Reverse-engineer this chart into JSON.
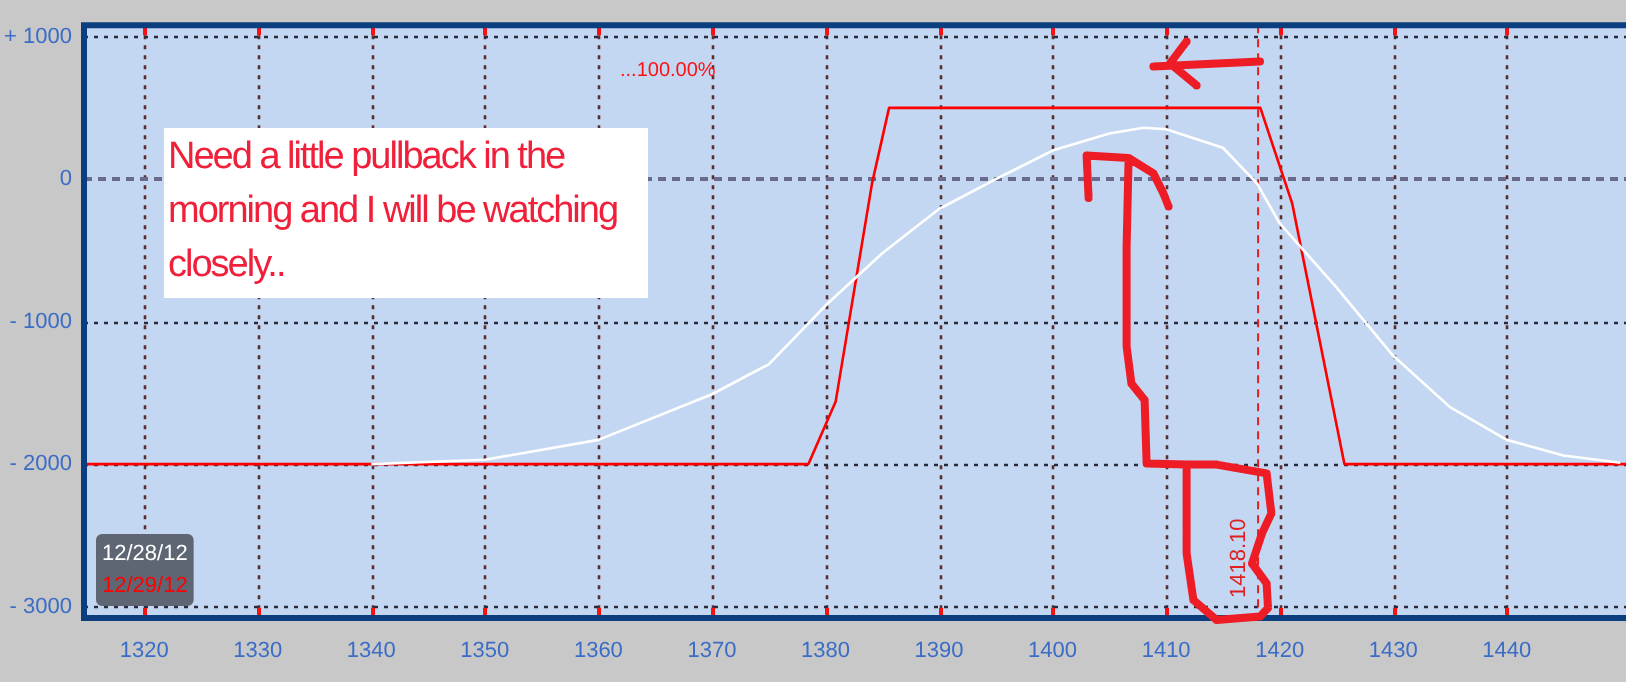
{
  "chart_data": {
    "type": "line",
    "series": [
      {
        "name": "12/28/12",
        "color": "#ffffff",
        "x": [
          1340,
          1350,
          1360,
          1370,
          1375,
          1377.8,
          1380.1,
          1385,
          1390,
          1395,
          1400,
          1405,
          1408,
          1410,
          1415,
          1418,
          1420,
          1425,
          1430,
          1435,
          1440,
          1445,
          1450
        ],
        "values": [
          -2000,
          -1970,
          -1830,
          -1510,
          -1300,
          -1070,
          -880,
          -520,
          -210,
          0,
          200,
          320,
          360,
          350,
          220,
          -30,
          -310,
          -760,
          -1240,
          -1600,
          -1830,
          -1940,
          -1990
        ]
      },
      {
        "name": "12/29/12",
        "color": "#ff0000",
        "x": [
          1314.7,
          1378.5,
          1380.9,
          1384.1,
          1385.6,
          1418.3,
          1421.1,
          1425.7,
          1450.5
        ],
        "values": [
          -2000,
          -2000,
          -1560,
          -30,
          500,
          500,
          -170,
          -2000,
          -2000
        ]
      }
    ],
    "xlim": [
      1314.7,
      1450.5
    ],
    "xticks": [
      1320,
      1330,
      1340,
      1350,
      1360,
      1370,
      1380,
      1390,
      1400,
      1410,
      1420,
      1430,
      1440
    ],
    "ylim": [
      -3080,
      1080
    ],
    "yticks": [
      {
        "value": 1000,
        "label": "+ 1000"
      },
      0,
      {
        "value": -1000,
        "label": "- 1000"
      },
      {
        "value": -2000,
        "label": "- 2000"
      },
      {
        "value": -3000,
        "label": "- 3000"
      }
    ],
    "grid": true,
    "legend": "bottom left",
    "line_style": "solid",
    "marker": "none",
    "ref_lines": [
      {
        "axis": "x",
        "value": 1418.1,
        "label": "1418.10",
        "color": "#e02020",
        "line_style": "dashed"
      },
      {
        "axis": "y",
        "value": 0,
        "color": "#6a6a8c",
        "line_style": "dashed"
      }
    ],
    "annotations": [
      "...100.00%",
      "Need a little pullback in the morning and I will be watching closely.."
    ]
  }
}
